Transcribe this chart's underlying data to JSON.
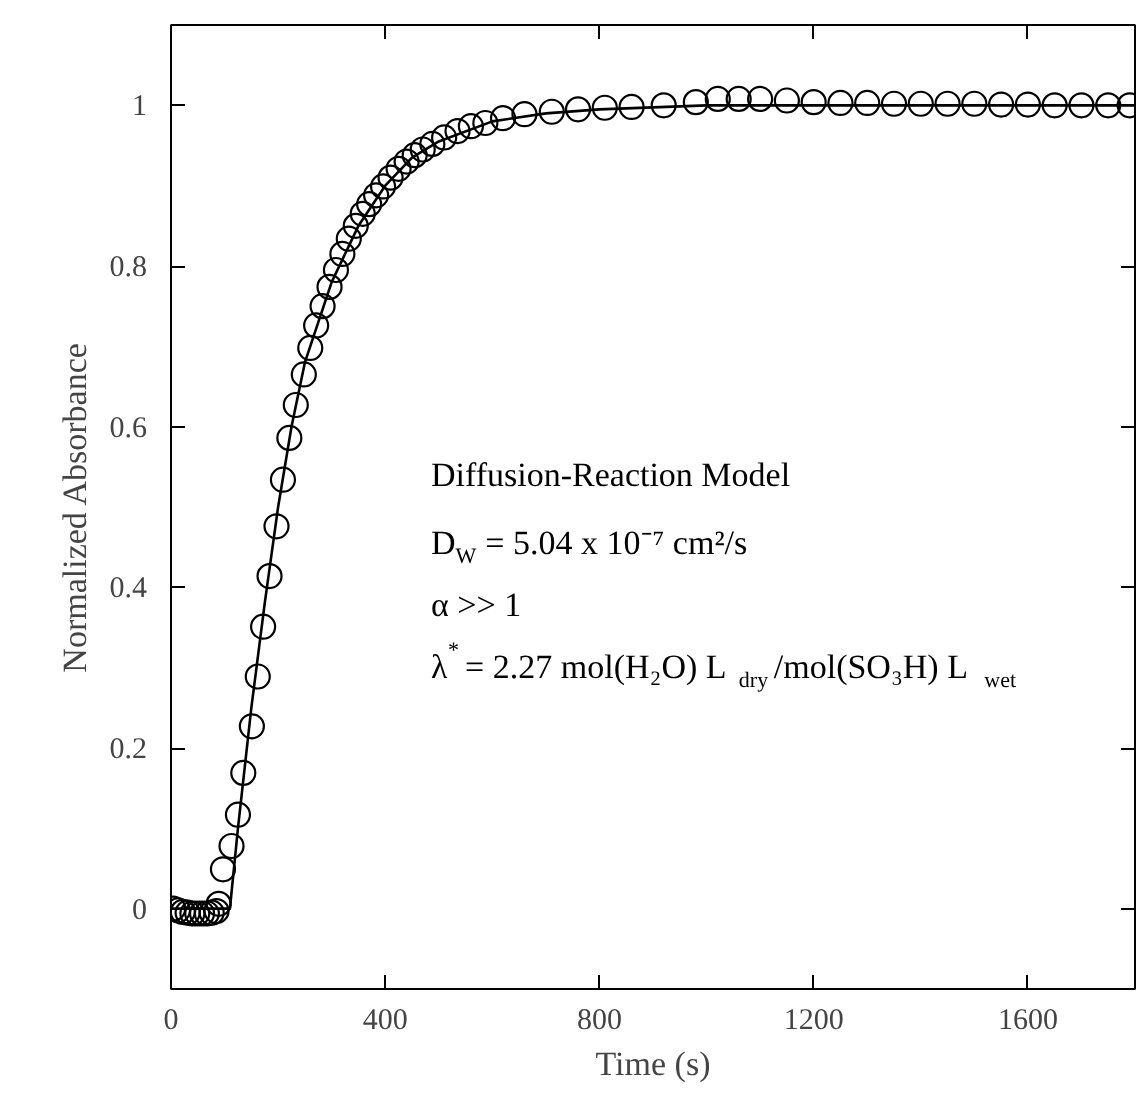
{
  "chart_data": {
    "type": "scatter",
    "xlabel": "Time (s)",
    "ylabel": "Normalized Absorbance",
    "xlim": [
      0,
      1800
    ],
    "ylim": [
      -0.1,
      1.1
    ],
    "xticks": [
      0,
      400,
      800,
      1200,
      1600
    ],
    "yticks": [
      0,
      0.2,
      0.4,
      0.6,
      0.8,
      1
    ],
    "grid": false,
    "line_style": "solid",
    "series": [
      {
        "marker": "circle",
        "color": "#000000",
        "x": [
          4,
          13,
          22,
          31,
          40,
          49,
          58,
          67,
          76,
          85,
          89,
          97,
          113,
          125,
          135,
          151,
          162,
          172,
          184,
          197,
          209,
          221,
          233,
          248,
          260,
          271,
          283,
          296,
          308,
          320,
          332,
          345,
          358,
          370,
          383,
          396,
          410,
          425,
          440,
          455,
          470,
          488,
          510,
          535,
          560,
          587,
          620,
          660,
          711,
          760,
          810,
          860,
          920,
          980,
          1021,
          1060,
          1100,
          1150,
          1200,
          1250,
          1300,
          1350,
          1400,
          1450,
          1500,
          1550,
          1600,
          1650,
          1700,
          1750,
          1790
        ],
        "values": [
          0,
          -0.002,
          -0.004,
          -0.005,
          -0.006,
          -0.006,
          -0.006,
          -0.006,
          -0.005,
          -0.003,
          0.006,
          0.049,
          0.078,
          0.117,
          0.169,
          0.227,
          0.289,
          0.351,
          0.414,
          0.476,
          0.534,
          0.586,
          0.627,
          0.665,
          0.698,
          0.726,
          0.75,
          0.774,
          0.795,
          0.815,
          0.834,
          0.85,
          0.865,
          0.877,
          0.888,
          0.899,
          0.91,
          0.921,
          0.93,
          0.938,
          0.945,
          0.952,
          0.96,
          0.968,
          0.974,
          0.978,
          0.984,
          0.989,
          0.992,
          0.995,
          0.997,
          0.998,
          1.0,
          1.004,
          1.008,
          1.008,
          1.008,
          1.006,
          1.004,
          1.003,
          1.003,
          1.002,
          1.002,
          1.002,
          1.002,
          1.001,
          1.001,
          1.0,
          1.0,
          1.0,
          1.0
        ]
      },
      {
        "type": "line",
        "color": "#000000",
        "x": [
          0,
          110,
          125,
          150,
          175,
          200,
          225,
          250,
          300,
          350,
          400,
          450,
          500,
          600,
          700,
          800,
          1000,
          1800
        ],
        "values": [
          0,
          0,
          0.1,
          0.25,
          0.38,
          0.5,
          0.6,
          0.68,
          0.78,
          0.85,
          0.9,
          0.935,
          0.955,
          0.98,
          0.99,
          0.995,
          1.0,
          1.0
        ]
      }
    ],
    "annotations": [
      "Diffusion-Reaction Model",
      "D$_{W}$ = 5.04 x 10⁻⁷ cm²/s",
      "α >> 1",
      "λ$^{*}$ = 2.27 mol(H₂O) L$_{dry}$/mol(SO₃H) L$_{wet}$"
    ]
  }
}
